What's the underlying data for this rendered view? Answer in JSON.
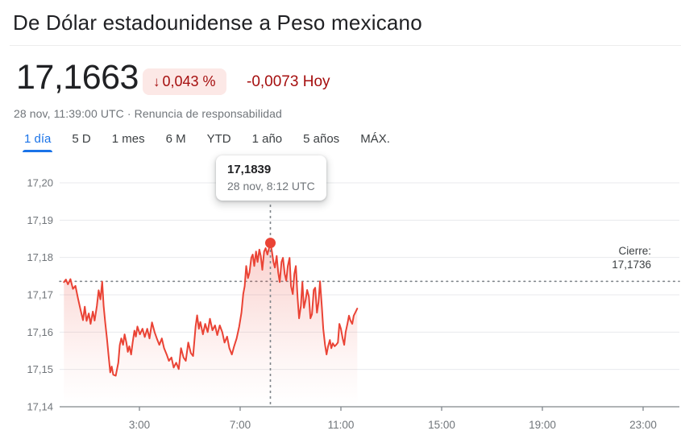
{
  "header": {
    "title": "De Dólar estadounidense a Peso mexicano"
  },
  "quote": {
    "price": "17,1663",
    "change_percent": "0,043 %",
    "change_absolute": "-0,0073 Hoy",
    "timestamp": "28 nov, 11:39:00 UTC",
    "separator": "·",
    "disclaimer_link": "Renuncia de responsabilidad"
  },
  "icons": {
    "down_arrow": "↓"
  },
  "colors": {
    "line_red": "#ea4335",
    "badge_bg": "#fce8e6",
    "badge_text": "#a50e0e",
    "active_tab_blue": "#1a73e8",
    "grid_gray": "#e8eaed",
    "axis_gray": "#80868b",
    "label_gray": "#70757a"
  },
  "tabs": {
    "items": [
      {
        "label": "1 día",
        "active": true
      },
      {
        "label": "5 D",
        "active": false
      },
      {
        "label": "1 mes",
        "active": false
      },
      {
        "label": "6 M",
        "active": false
      },
      {
        "label": "YTD",
        "active": false
      },
      {
        "label": "1 año",
        "active": false
      },
      {
        "label": "5 años",
        "active": false
      },
      {
        "label": "MÁX.",
        "active": false
      }
    ]
  },
  "chart_data": {
    "type": "line",
    "line_color": "#ea4335",
    "grid": true,
    "xlim_hours": [
      0,
      24
    ],
    "ylim": [
      17.14,
      17.2
    ],
    "y_ticks": [
      {
        "v": 17.2,
        "label": "17,20"
      },
      {
        "v": 17.19,
        "label": "17,19"
      },
      {
        "v": 17.18,
        "label": "17,18"
      },
      {
        "v": 17.17,
        "label": "17,17"
      },
      {
        "v": 17.16,
        "label": "17,16"
      },
      {
        "v": 17.15,
        "label": "17,15"
      },
      {
        "v": 17.14,
        "label": "17,14"
      }
    ],
    "x_ticks": [
      {
        "t": 3,
        "label": "3:00"
      },
      {
        "t": 7,
        "label": "7:00"
      },
      {
        "t": 11,
        "label": "11:00"
      },
      {
        "t": 15,
        "label": "15:00"
      },
      {
        "t": 19,
        "label": "19:00"
      },
      {
        "t": 23,
        "label": "23:00"
      }
    ],
    "close_line": {
      "value": 17.1736,
      "label": "Cierre:",
      "value_label": "17,1736"
    },
    "marker": {
      "t": 8.2,
      "value": 17.1839
    },
    "tooltip": {
      "value": "17,1839",
      "time": "28 nov, 8:12 UTC"
    },
    "series": [
      {
        "name": "USD/MXN",
        "points": [
          [
            0.0,
            17.1734
          ],
          [
            0.08,
            17.1741
          ],
          [
            0.16,
            17.1728
          ],
          [
            0.26,
            17.1742
          ],
          [
            0.36,
            17.1716
          ],
          [
            0.46,
            17.1724
          ],
          [
            0.56,
            17.169
          ],
          [
            0.66,
            17.166
          ],
          [
            0.76,
            17.1632
          ],
          [
            0.83,
            17.1668
          ],
          [
            0.9,
            17.163
          ],
          [
            0.99,
            17.165
          ],
          [
            1.06,
            17.1622
          ],
          [
            1.15,
            17.1655
          ],
          [
            1.22,
            17.1631
          ],
          [
            1.31,
            17.167
          ],
          [
            1.38,
            17.1712
          ],
          [
            1.45,
            17.1688
          ],
          [
            1.52,
            17.1735
          ],
          [
            1.58,
            17.167
          ],
          [
            1.64,
            17.1627
          ],
          [
            1.71,
            17.1583
          ],
          [
            1.77,
            17.154
          ],
          [
            1.84,
            17.1492
          ],
          [
            1.9,
            17.1508
          ],
          [
            1.96,
            17.1486
          ],
          [
            2.06,
            17.1483
          ],
          [
            2.16,
            17.1518
          ],
          [
            2.22,
            17.1565
          ],
          [
            2.28,
            17.1583
          ],
          [
            2.35,
            17.1566
          ],
          [
            2.41,
            17.1594
          ],
          [
            2.48,
            17.1572
          ],
          [
            2.54,
            17.1547
          ],
          [
            2.6,
            17.1562
          ],
          [
            2.67,
            17.154
          ],
          [
            2.73,
            17.1572
          ],
          [
            2.8,
            17.1604
          ],
          [
            2.86,
            17.1588
          ],
          [
            2.92,
            17.1615
          ],
          [
            3.02,
            17.1594
          ],
          [
            3.12,
            17.1609
          ],
          [
            3.21,
            17.1587
          ],
          [
            3.31,
            17.1609
          ],
          [
            3.4,
            17.1583
          ],
          [
            3.5,
            17.1626
          ],
          [
            3.6,
            17.16
          ],
          [
            3.69,
            17.1583
          ],
          [
            3.79,
            17.1566
          ],
          [
            3.89,
            17.1583
          ],
          [
            3.98,
            17.1557
          ],
          [
            4.08,
            17.154
          ],
          [
            4.17,
            17.1523
          ],
          [
            4.27,
            17.1532
          ],
          [
            4.36,
            17.1505
          ],
          [
            4.46,
            17.1518
          ],
          [
            4.56,
            17.1501
          ],
          [
            4.65,
            17.1557
          ],
          [
            4.75,
            17.1532
          ],
          [
            4.84,
            17.1523
          ],
          [
            4.94,
            17.1572
          ],
          [
            5.04,
            17.1544
          ],
          [
            5.13,
            17.1536
          ],
          [
            5.23,
            17.1615
          ],
          [
            5.29,
            17.1645
          ],
          [
            5.36,
            17.1609
          ],
          [
            5.42,
            17.1627
          ],
          [
            5.52,
            17.1594
          ],
          [
            5.61,
            17.1622
          ],
          [
            5.71,
            17.16
          ],
          [
            5.8,
            17.1636
          ],
          [
            5.9,
            17.1605
          ],
          [
            6.0,
            17.1618
          ],
          [
            6.09,
            17.1592
          ],
          [
            6.19,
            17.1618
          ],
          [
            6.29,
            17.16
          ],
          [
            6.38,
            17.1572
          ],
          [
            6.48,
            17.1588
          ],
          [
            6.57,
            17.1557
          ],
          [
            6.67,
            17.154
          ],
          [
            6.76,
            17.1562
          ],
          [
            6.86,
            17.1583
          ],
          [
            6.96,
            17.1615
          ],
          [
            7.05,
            17.1652
          ],
          [
            7.12,
            17.1702
          ],
          [
            7.18,
            17.1723
          ],
          [
            7.24,
            17.1777
          ],
          [
            7.31,
            17.1745
          ],
          [
            7.37,
            17.176
          ],
          [
            7.44,
            17.1799
          ],
          [
            7.5,
            17.1808
          ],
          [
            7.56,
            17.1777
          ],
          [
            7.63,
            17.1816
          ],
          [
            7.69,
            17.1788
          ],
          [
            7.76,
            17.1821
          ],
          [
            7.82,
            17.1804
          ],
          [
            7.88,
            17.1767
          ],
          [
            7.95,
            17.1816
          ],
          [
            8.01,
            17.1825
          ],
          [
            8.08,
            17.1808
          ],
          [
            8.2,
            17.1839
          ],
          [
            8.26,
            17.1816
          ],
          [
            8.32,
            17.1788
          ],
          [
            8.38,
            17.1773
          ],
          [
            8.45,
            17.1804
          ],
          [
            8.51,
            17.176
          ],
          [
            8.57,
            17.1734
          ],
          [
            8.64,
            17.1788
          ],
          [
            8.7,
            17.1799
          ],
          [
            8.77,
            17.1756
          ],
          [
            8.83,
            17.1738
          ],
          [
            8.89,
            17.1777
          ],
          [
            8.96,
            17.1799
          ],
          [
            9.02,
            17.1723
          ],
          [
            9.09,
            17.1702
          ],
          [
            9.15,
            17.1756
          ],
          [
            9.21,
            17.1777
          ],
          [
            9.28,
            17.1691
          ],
          [
            9.34,
            17.1637
          ],
          [
            9.41,
            17.167
          ],
          [
            9.47,
            17.1734
          ],
          [
            9.53,
            17.1665
          ],
          [
            9.6,
            17.1687
          ],
          [
            9.66,
            17.1713
          ],
          [
            9.73,
            17.1695
          ],
          [
            9.79,
            17.1637
          ],
          [
            9.85,
            17.1648
          ],
          [
            9.92,
            17.1713
          ],
          [
            9.98,
            17.1719
          ],
          [
            10.05,
            17.1652
          ],
          [
            10.11,
            17.168
          ],
          [
            10.17,
            17.1736
          ],
          [
            10.24,
            17.167
          ],
          [
            10.3,
            17.1609
          ],
          [
            10.37,
            17.1566
          ],
          [
            10.43,
            17.154
          ],
          [
            10.49,
            17.1562
          ],
          [
            10.56,
            17.1579
          ],
          [
            10.62,
            17.1557
          ],
          [
            10.68,
            17.157
          ],
          [
            10.75,
            17.1562
          ],
          [
            10.81,
            17.1566
          ],
          [
            10.88,
            17.1572
          ],
          [
            10.94,
            17.1622
          ],
          [
            11.0,
            17.1609
          ],
          [
            11.07,
            17.1583
          ],
          [
            11.13,
            17.1566
          ],
          [
            11.19,
            17.16
          ],
          [
            11.26,
            17.1622
          ],
          [
            11.32,
            17.1644
          ],
          [
            11.38,
            17.1631
          ],
          [
            11.45,
            17.1622
          ],
          [
            11.51,
            17.1644
          ],
          [
            11.57,
            17.1652
          ],
          [
            11.65,
            17.1663
          ]
        ]
      }
    ]
  }
}
